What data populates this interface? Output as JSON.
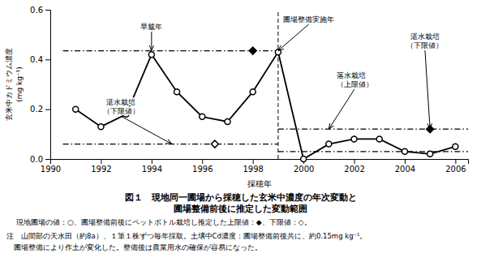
{
  "chart_data": {
    "type": "line",
    "title": "図１　現地同一圃場から採穂した玄米中濃度の年次変動と",
    "subtitle": "圃場整備前後に推定した変動範囲",
    "xlabel": "採穂年",
    "ylabel": [
      "玄米中カドミウム濃度",
      "(mg kg⁻¹)"
    ],
    "color": "black",
    "xlim": [
      1990,
      2006.5
    ],
    "xticks": [
      1990,
      1992,
      1994,
      1996,
      1998,
      2000,
      2002,
      2004,
      2006
    ],
    "ylim": [
      0,
      0.6
    ],
    "yticks": [
      {
        "value": 0,
        "label": "0.0"
      },
      0.2,
      0.4,
      0.6
    ],
    "series": [
      {
        "type": "line",
        "x": [
          1991,
          1992,
          1993,
          1994,
          1995,
          1996,
          1997,
          1998,
          1999,
          2000,
          2001,
          2002,
          2003,
          2004,
          2005,
          2006
        ],
        "values": [
          0.2,
          0.13,
          0.18,
          0.42,
          0.27,
          0.17,
          0.15,
          0.27,
          0.43,
          0.0,
          0.06,
          0.08,
          0.08,
          0.03,
          0.02,
          0.05
        ],
        "marker": "open-circle",
        "line_style": "solid"
      },
      {
        "type": "line",
        "x": [
          1990.5,
          1999.0
        ],
        "values": [
          0.435,
          0.435
        ],
        "line_style": "dashdot"
      },
      {
        "type": "line",
        "x": [
          1990.5,
          1999.0
        ],
        "values": [
          0.06,
          0.06
        ],
        "line_style": "dashdot"
      },
      {
        "type": "line",
        "x": [
          1999.0,
          2006.5
        ],
        "values": [
          0.12,
          0.12
        ],
        "line_style": "dashdot"
      },
      {
        "type": "line",
        "x": [
          1999.0,
          2006.5
        ],
        "values": [
          0.03,
          0.03
        ],
        "line_style": "dashdot"
      },
      {
        "type": "scatter",
        "x": [
          1998
        ],
        "values": [
          0.435
        ],
        "marker": "diamond"
      },
      {
        "type": "scatter",
        "x": [
          1996.5
        ],
        "values": [
          0.06
        ],
        "marker": "open-diamond"
      },
      {
        "type": "scatter",
        "x": [
          2005
        ],
        "values": [
          0.12
        ],
        "marker": "diamond"
      }
    ],
    "vlines": [
      1999
    ],
    "annotations": [
      {
        "text": "旱魃年",
        "x": 1994,
        "y": 0.435,
        "text_x": 1994,
        "text_y": 0.515,
        "align": "center"
      },
      {
        "text": "圃場整備実施年",
        "x": 1999,
        "y": 0.435,
        "text_x": 1999.2,
        "text_y": 0.545,
        "align": "left"
      },
      {
        "text": "湛水栽培\n（下限値）",
        "x": 1994.8,
        "y": 0.06,
        "text_x": 1992.8,
        "text_y": 0.175,
        "align": "center"
      },
      {
        "text": "落水栽培\n（上限値）",
        "x": 2001.0,
        "y": 0.12,
        "text_x": 2001.3,
        "text_y": 0.285,
        "align": "left"
      },
      {
        "text": "湛水栽培\n（下限値）",
        "x": 2005,
        "y": 0.12,
        "text_x": 2004.8,
        "text_y": 0.44,
        "align": "center"
      }
    ],
    "caption": "現地圃場の値：○、圃場整備前後にペットボトル栽培し推定した上限値：◆、下限値：◇。",
    "notes": [
      "注　山間部の天水田（約8a）、１筆１株ずつ毎年採取。土壌中Cd濃度：圃場整備前後共に、約0.15mg kg⁻¹。",
      "　圃場整備により作土が変化した。整備後は農業用水の確保が容易になった。"
    ]
  }
}
